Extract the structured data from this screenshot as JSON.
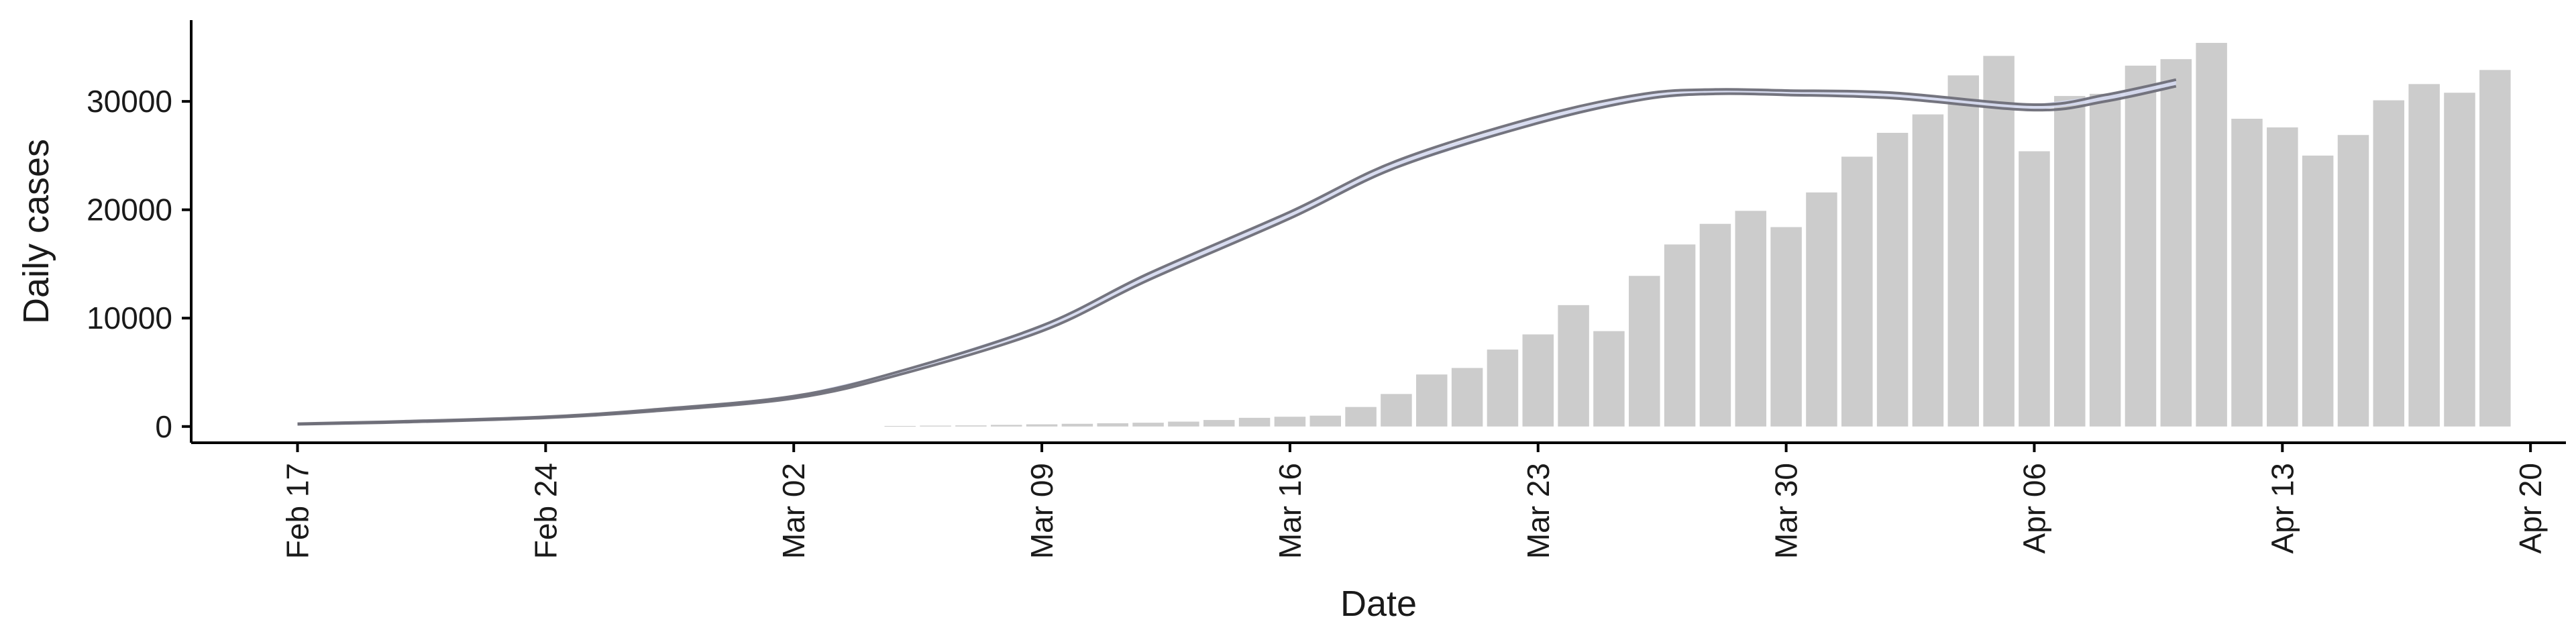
{
  "chart_data": {
    "type": "bar",
    "xlabel": "Date",
    "ylabel": "Daily cases",
    "x_range": [
      "2020-02-14",
      "2020-04-21"
    ],
    "ylim": [
      -1500,
      37500
    ],
    "grid": false,
    "legend": "none",
    "y_ticks": [
      {
        "value": 0,
        "label": "0"
      },
      {
        "value": 10000,
        "label": "10000"
      },
      {
        "value": 20000,
        "label": "20000"
      },
      {
        "value": 30000,
        "label": "30000"
      }
    ],
    "x_ticks": [
      {
        "date": "2020-02-17",
        "label": "Feb 17"
      },
      {
        "date": "2020-02-24",
        "label": "Feb 24"
      },
      {
        "date": "2020-03-02",
        "label": "Mar 02"
      },
      {
        "date": "2020-03-09",
        "label": "Mar 09"
      },
      {
        "date": "2020-03-16",
        "label": "Mar 16"
      },
      {
        "date": "2020-03-23",
        "label": "Mar 23"
      },
      {
        "date": "2020-03-30",
        "label": "Mar 30"
      },
      {
        "date": "2020-04-06",
        "label": "Apr 06"
      },
      {
        "date": "2020-04-13",
        "label": "Apr 13"
      },
      {
        "date": "2020-04-20",
        "label": "Apr 20"
      }
    ],
    "bars": {
      "dates": [
        "2020-03-05",
        "2020-03-06",
        "2020-03-07",
        "2020-03-08",
        "2020-03-09",
        "2020-03-10",
        "2020-03-11",
        "2020-03-12",
        "2020-03-13",
        "2020-03-14",
        "2020-03-15",
        "2020-03-16",
        "2020-03-17",
        "2020-03-18",
        "2020-03-19",
        "2020-03-20",
        "2020-03-21",
        "2020-03-22",
        "2020-03-23",
        "2020-03-24",
        "2020-03-25",
        "2020-03-26",
        "2020-03-27",
        "2020-03-28",
        "2020-03-29",
        "2020-03-30",
        "2020-03-31",
        "2020-04-01",
        "2020-04-02",
        "2020-04-03",
        "2020-04-04",
        "2020-04-05",
        "2020-04-06",
        "2020-04-07",
        "2020-04-08",
        "2020-04-09",
        "2020-04-10",
        "2020-04-11",
        "2020-04-12",
        "2020-04-13",
        "2020-04-14",
        "2020-04-15",
        "2020-04-16",
        "2020-04-17",
        "2020-04-18",
        "2020-04-19"
      ],
      "values": [
        50,
        80,
        100,
        150,
        200,
        250,
        300,
        350,
        450,
        600,
        800,
        900,
        1000,
        1800,
        3000,
        4800,
        5400,
        7100,
        8500,
        11200,
        8800,
        13900,
        16800,
        18700,
        19900,
        18400,
        21600,
        24900,
        27100,
        28800,
        32400,
        34200,
        25400,
        30500,
        30700,
        33300,
        33900,
        35400,
        28400,
        27600,
        25000,
        26900,
        30100,
        31600,
        30800,
        32900
      ],
      "color": "#cccccc"
    },
    "lines": [
      {
        "dates": [
          "2020-02-17",
          "2020-02-20",
          "2020-02-24",
          "2020-02-27",
          "2020-03-02",
          "2020-03-05",
          "2020-03-09",
          "2020-03-12",
          "2020-03-16",
          "2020-03-19",
          "2020-03-23",
          "2020-03-26",
          "2020-03-28",
          "2020-03-30",
          "2020-04-02",
          "2020-04-06",
          "2020-04-08",
          "2020-04-10"
        ],
        "values": [
          200,
          400,
          800,
          1400,
          2600,
          4800,
          8800,
          13500,
          19200,
          23900,
          28000,
          30200,
          30700,
          30600,
          30300,
          29200,
          30000,
          31400
        ],
        "color": "#6e6e78"
      },
      {
        "dates": [
          "2020-02-17",
          "2020-02-20",
          "2020-02-24",
          "2020-02-27",
          "2020-03-02",
          "2020-03-05",
          "2020-03-09",
          "2020-03-12",
          "2020-03-16",
          "2020-03-19",
          "2020-03-23",
          "2020-03-26",
          "2020-03-28",
          "2020-03-30",
          "2020-04-02",
          "2020-04-06",
          "2020-04-08",
          "2020-04-10"
        ],
        "values": [
          260,
          480,
          900,
          1550,
          2800,
          5100,
          9300,
          14100,
          19800,
          24500,
          28600,
          30700,
          31100,
          31000,
          30800,
          29700,
          30600,
          32000
        ],
        "color": "#6e6e78"
      }
    ],
    "ribbon_color": "#d4d8ee"
  }
}
